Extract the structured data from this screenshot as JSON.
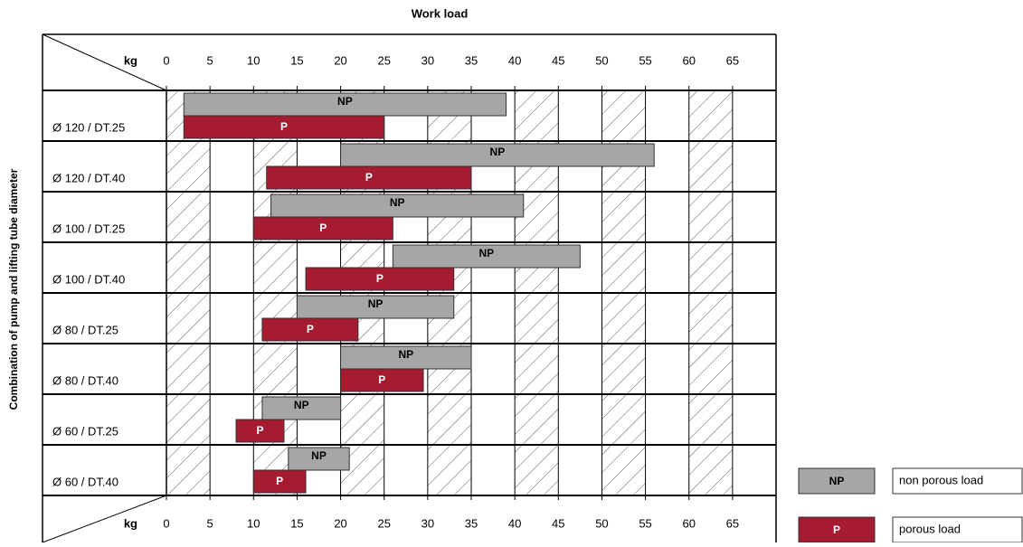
{
  "chart_data": {
    "type": "range_bar",
    "title": "Work load",
    "y_label": "Combination of pump and lifting tube diameter",
    "x_unit": "kg",
    "categories": [
      "Ø 120 / DT.25",
      "Ø 120 / DT.40",
      "Ø 100 / DT.25",
      "Ø 100 / DT.40",
      "Ø 80 / DT.25",
      "Ø 80 / DT.40",
      "Ø 60 / DT.25",
      "Ø 60 / DT.40"
    ],
    "series": [
      {
        "name": "NP",
        "description": "non porous load",
        "color": "#a6a6a6",
        "values": [
          [
            2,
            39
          ],
          [
            20,
            56
          ],
          [
            12,
            41
          ],
          [
            26,
            47.5
          ],
          [
            15,
            33
          ],
          [
            20,
            35
          ],
          [
            11,
            20
          ],
          [
            14,
            21
          ]
        ]
      },
      {
        "name": "P",
        "description": "porous load",
        "color": "#a51c30",
        "values": [
          [
            2,
            25
          ],
          [
            11.5,
            35
          ],
          [
            10,
            26
          ],
          [
            16,
            33
          ],
          [
            11,
            22
          ],
          [
            20,
            29.5
          ],
          [
            8,
            13.5
          ],
          [
            10,
            16
          ]
        ]
      }
    ],
    "xlim": [
      0,
      70
    ],
    "xticks": [
      0,
      5,
      10,
      15,
      20,
      25,
      30,
      35,
      40,
      45,
      50,
      55,
      60,
      65
    ]
  }
}
